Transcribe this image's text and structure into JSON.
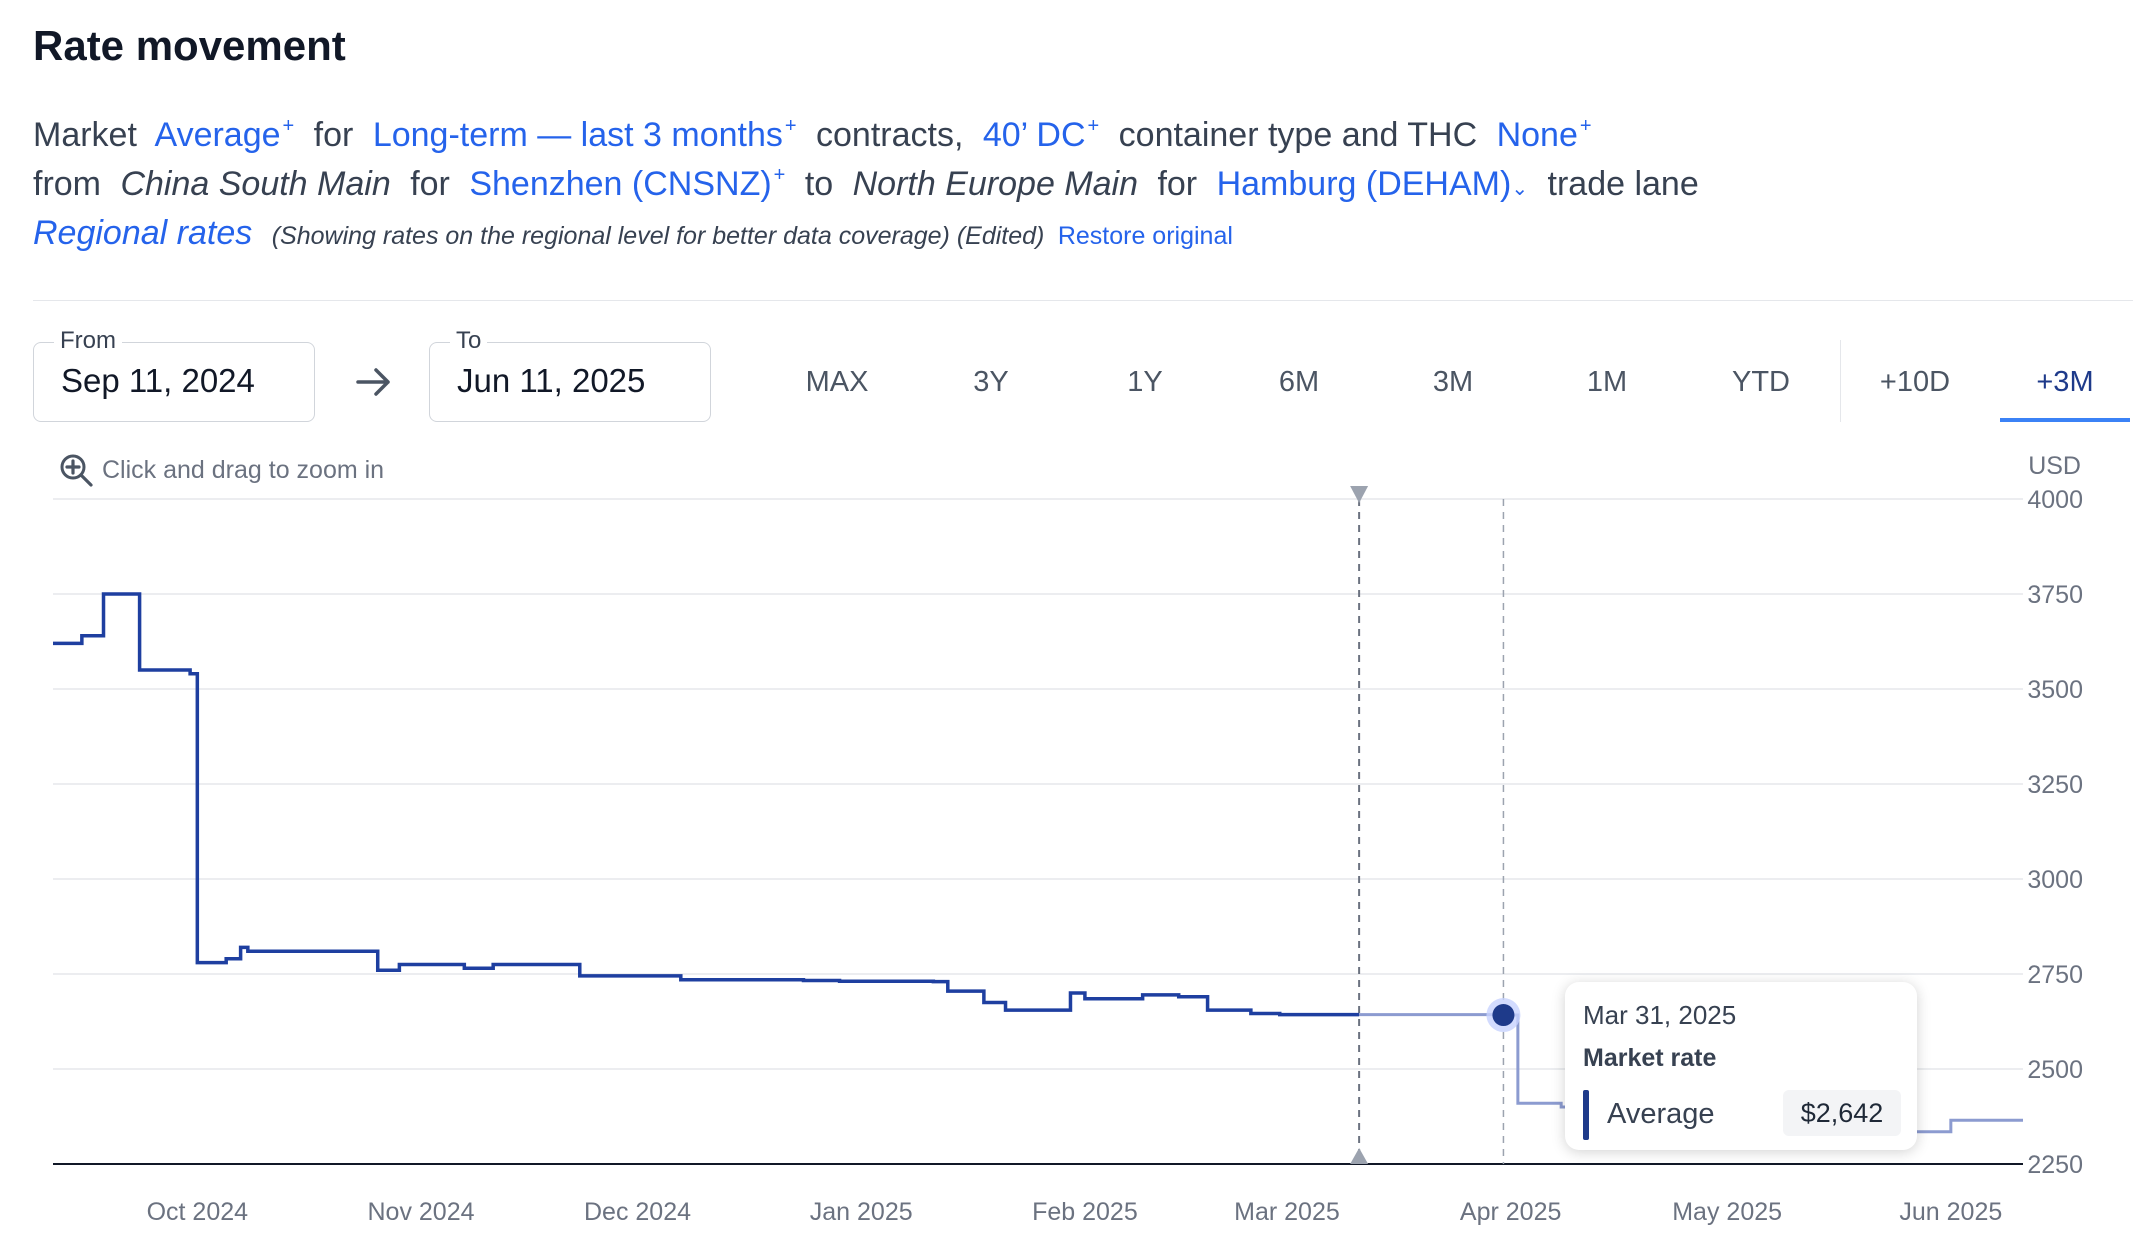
{
  "header": {
    "title": "Rate movement"
  },
  "description": {
    "market_label": "Market",
    "market_value": "Average",
    "for1": "for",
    "term_value": "Long-term — last 3 months",
    "contracts": "contracts,",
    "container_value": "40’ DC",
    "container_text": "container type and THC",
    "thc_value": "None",
    "from_text": "from",
    "origin_region": "China South Main",
    "for2": "for",
    "origin_port": "Shenzhen (CNSNZ)",
    "to_text": "to",
    "dest_region": "North Europe Main",
    "for3": "for",
    "dest_port": "Hamburg (DEHAM)",
    "trade_lane": "trade lane",
    "plus": "+",
    "regional_rates": "Regional rates",
    "regional_note": "(Showing rates on the regional level for better data coverage) (Edited)",
    "restore": "Restore original"
  },
  "controls": {
    "from_label": "From",
    "from_value": "Sep 11, 2024",
    "to_label": "To",
    "to_value": "Jun 11, 2025",
    "ranges": [
      "MAX",
      "3Y",
      "1Y",
      "6M",
      "3M",
      "1M",
      "YTD",
      "+10D",
      "+3M"
    ],
    "active_range": "+3M",
    "zoom_hint": "Click and drag to zoom in"
  },
  "tooltip": {
    "date": "Mar 31, 2025",
    "label": "Market rate",
    "series": "Average",
    "value": "$2,642"
  },
  "colors": {
    "series": "#1e3fa0",
    "forecast": "#8c9bd0",
    "accent": "#2563eb"
  },
  "chart_data": {
    "type": "line",
    "step": true,
    "x_start": "2024-09-11",
    "x_end": "2025-06-11",
    "xticks": [
      {
        "label": "Oct 2024",
        "date": "2024-10-01"
      },
      {
        "label": "Nov 2024",
        "date": "2024-11-01"
      },
      {
        "label": "Dec 2024",
        "date": "2024-12-01"
      },
      {
        "label": "Jan 2025",
        "date": "2025-01-01"
      },
      {
        "label": "Feb 2025",
        "date": "2025-02-01"
      },
      {
        "label": "Mar 2025",
        "date": "2025-03-01"
      },
      {
        "label": "Apr 2025",
        "date": "2025-04-01"
      },
      {
        "label": "May 2025",
        "date": "2025-05-01"
      },
      {
        "label": "Jun 2025",
        "date": "2025-06-01"
      }
    ],
    "y_unit": "USD",
    "ylim": [
      2250,
      4000
    ],
    "yticks": [
      4000,
      3750,
      3500,
      3250,
      3000,
      2750,
      2500,
      2250
    ],
    "grid": true,
    "series": [
      {
        "name": "Average",
        "points": [
          [
            "2024-09-11",
            3620
          ],
          [
            "2024-09-15",
            3640
          ],
          [
            "2024-09-18",
            3750
          ],
          [
            "2024-09-23",
            3550
          ],
          [
            "2024-09-30",
            3540
          ],
          [
            "2024-10-01",
            2780
          ],
          [
            "2024-10-05",
            2790
          ],
          [
            "2024-10-07",
            2820
          ],
          [
            "2024-10-08",
            2810
          ],
          [
            "2024-10-26",
            2760
          ],
          [
            "2024-10-29",
            2775
          ],
          [
            "2024-11-07",
            2765
          ],
          [
            "2024-11-11",
            2775
          ],
          [
            "2024-11-23",
            2745
          ],
          [
            "2024-12-07",
            2735
          ],
          [
            "2024-12-24",
            2733
          ],
          [
            "2024-12-29",
            2731
          ],
          [
            "2025-01-11",
            2730
          ],
          [
            "2025-01-13",
            2705
          ],
          [
            "2025-01-18",
            2675
          ],
          [
            "2025-01-21",
            2655
          ],
          [
            "2025-01-30",
            2700
          ],
          [
            "2025-02-01",
            2685
          ],
          [
            "2025-02-09",
            2695
          ],
          [
            "2025-02-14",
            2690
          ],
          [
            "2025-02-18",
            2655
          ],
          [
            "2025-02-24",
            2646
          ],
          [
            "2025-02-28",
            2643
          ],
          [
            "2025-03-11",
            2643
          ]
        ]
      },
      {
        "name": "",
        "dashed_segment": false,
        "points": [
          [
            "2025-03-11",
            2643
          ],
          [
            "2025-03-31",
            2642
          ],
          [
            "2025-04-02",
            2410
          ],
          [
            "2025-04-08",
            2400
          ],
          [
            "2025-05-21",
            2335
          ],
          [
            "2025-06-01",
            2365
          ],
          [
            "2025-06-11",
            2365
          ]
        ]
      }
    ],
    "markers": [
      {
        "date": "2025-03-11",
        "type": "today-line"
      },
      {
        "date": "2025-03-31",
        "type": "hover-line",
        "value": 2642
      }
    ]
  }
}
